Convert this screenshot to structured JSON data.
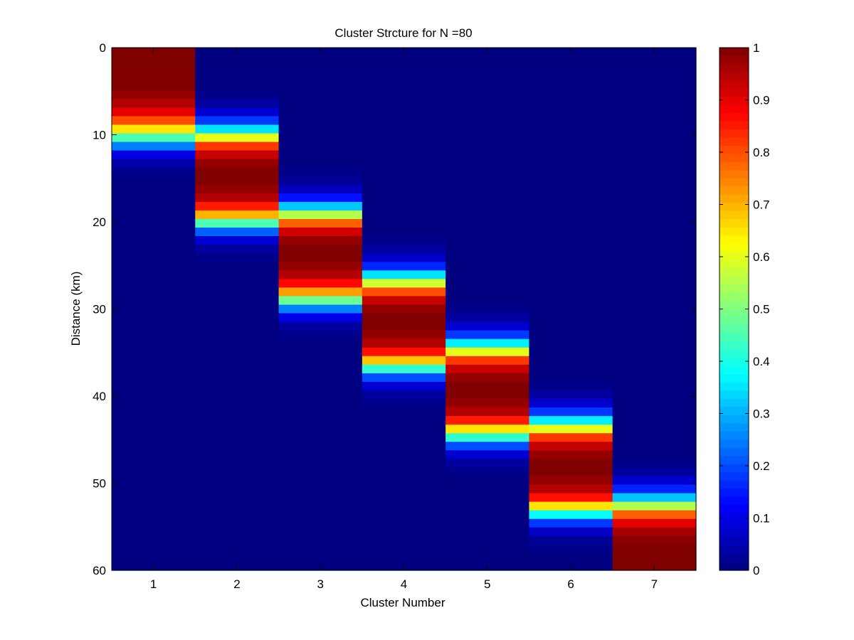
{
  "chart_data": {
    "type": "heatmap",
    "title": "Cluster Strcture for N =80",
    "xlabel": "Cluster Number",
    "ylabel": "Distance (km)",
    "x_ticks": [
      "1",
      "2",
      "3",
      "4",
      "5",
      "6",
      "7"
    ],
    "y_ticks": [
      "0",
      "10",
      "20",
      "30",
      "40",
      "50",
      "60"
    ],
    "xlim": [
      0.5,
      7.5
    ],
    "ylim": [
      0,
      60
    ],
    "y_direction": "reversed",
    "clim": [
      0,
      1
    ],
    "colorbar_ticks": [
      "0",
      "0.1",
      "0.2",
      "0.3",
      "0.4",
      "0.5",
      "0.6",
      "0.7",
      "0.8",
      "0.9",
      "1"
    ],
    "colormap": "jet",
    "colorbar_position": "right",
    "grid": false,
    "row_distances_km": [
      0,
      1,
      2,
      3,
      4,
      5,
      6,
      7,
      8,
      9,
      10,
      11,
      12,
      13,
      14,
      15,
      16,
      17,
      18,
      19,
      20,
      21,
      22,
      23,
      24,
      25,
      26,
      27,
      28,
      29,
      30,
      31,
      32,
      33,
      34,
      35,
      36,
      37,
      38,
      39,
      40,
      41,
      42,
      43,
      44,
      45,
      46,
      47,
      48,
      49,
      50,
      51,
      52,
      53,
      54,
      55,
      56,
      57,
      58,
      59,
      60
    ],
    "series": [
      {
        "values": [
          1.0,
          1.0,
          1.0,
          1.0,
          1.0,
          0.98,
          0.95,
          0.9,
          0.8,
          0.65,
          0.45,
          0.25,
          0.1,
          0.04,
          0.01,
          0,
          0,
          0,
          0,
          0,
          0,
          0,
          0,
          0,
          0,
          0,
          0,
          0,
          0,
          0,
          0,
          0,
          0,
          0,
          0,
          0,
          0,
          0,
          0,
          0,
          0,
          0,
          0,
          0,
          0,
          0,
          0,
          0,
          0,
          0,
          0,
          0,
          0,
          0,
          0,
          0,
          0,
          0,
          0,
          0,
          0
        ]
      },
      {
        "values": [
          0,
          0,
          0,
          0,
          0,
          0.01,
          0.03,
          0.08,
          0.18,
          0.35,
          0.6,
          0.82,
          0.93,
          0.98,
          1.0,
          1.0,
          0.98,
          0.95,
          0.85,
          0.7,
          0.45,
          0.22,
          0.08,
          0.03,
          0.01,
          0,
          0,
          0,
          0,
          0,
          0,
          0,
          0,
          0,
          0,
          0,
          0,
          0,
          0,
          0,
          0,
          0,
          0,
          0,
          0,
          0,
          0,
          0,
          0,
          0,
          0,
          0,
          0,
          0,
          0,
          0,
          0,
          0,
          0,
          0,
          0
        ]
      },
      {
        "values": [
          0,
          0,
          0,
          0,
          0,
          0,
          0,
          0,
          0,
          0,
          0,
          0,
          0,
          0,
          0.01,
          0.02,
          0.06,
          0.14,
          0.32,
          0.55,
          0.78,
          0.92,
          0.98,
          1.0,
          1.0,
          0.98,
          0.95,
          0.87,
          0.72,
          0.48,
          0.25,
          0.1,
          0.03,
          0.01,
          0,
          0,
          0,
          0,
          0,
          0,
          0,
          0,
          0,
          0,
          0,
          0,
          0,
          0,
          0,
          0,
          0,
          0,
          0,
          0,
          0,
          0,
          0,
          0,
          0,
          0,
          0
        ]
      },
      {
        "values": [
          0,
          0,
          0,
          0,
          0,
          0,
          0,
          0,
          0,
          0,
          0,
          0,
          0,
          0,
          0,
          0,
          0,
          0,
          0,
          0,
          0,
          0,
          0.01,
          0.03,
          0.07,
          0.16,
          0.35,
          0.58,
          0.8,
          0.93,
          0.98,
          1.0,
          1.0,
          0.98,
          0.95,
          0.86,
          0.68,
          0.42,
          0.2,
          0.08,
          0.03,
          0.01,
          0,
          0,
          0,
          0,
          0,
          0,
          0,
          0,
          0,
          0,
          0,
          0,
          0,
          0,
          0,
          0,
          0,
          0,
          0
        ]
      },
      {
        "values": [
          0,
          0,
          0,
          0,
          0,
          0,
          0,
          0,
          0,
          0,
          0,
          0,
          0,
          0,
          0,
          0,
          0,
          0,
          0,
          0,
          0,
          0,
          0,
          0,
          0,
          0,
          0,
          0,
          0,
          0,
          0.01,
          0.03,
          0.08,
          0.18,
          0.36,
          0.6,
          0.82,
          0.93,
          0.98,
          1.0,
          1.0,
          0.98,
          0.95,
          0.85,
          0.65,
          0.42,
          0.2,
          0.08,
          0.03,
          0.01,
          0,
          0,
          0,
          0,
          0,
          0,
          0,
          0,
          0,
          0,
          0
        ]
      },
      {
        "values": [
          0,
          0,
          0,
          0,
          0,
          0,
          0,
          0,
          0,
          0,
          0,
          0,
          0,
          0,
          0,
          0,
          0,
          0,
          0,
          0,
          0,
          0,
          0,
          0,
          0,
          0,
          0,
          0,
          0,
          0,
          0,
          0,
          0,
          0,
          0,
          0,
          0,
          0,
          0,
          0.01,
          0.03,
          0.08,
          0.18,
          0.36,
          0.6,
          0.82,
          0.93,
          0.98,
          1.0,
          1.0,
          0.98,
          0.95,
          0.86,
          0.65,
          0.38,
          0.18,
          0.07,
          0.02,
          0.01,
          0,
          0
        ]
      },
      {
        "values": [
          0,
          0,
          0,
          0,
          0,
          0,
          0,
          0,
          0,
          0,
          0,
          0,
          0,
          0,
          0,
          0,
          0,
          0,
          0,
          0,
          0,
          0,
          0,
          0,
          0,
          0,
          0,
          0,
          0,
          0,
          0,
          0,
          0,
          0,
          0,
          0,
          0,
          0,
          0,
          0,
          0,
          0,
          0,
          0,
          0,
          0,
          0,
          0,
          0.01,
          0.03,
          0.08,
          0.16,
          0.32,
          0.55,
          0.78,
          0.9,
          0.96,
          0.99,
          1.0,
          1.0,
          1.0
        ]
      }
    ]
  }
}
